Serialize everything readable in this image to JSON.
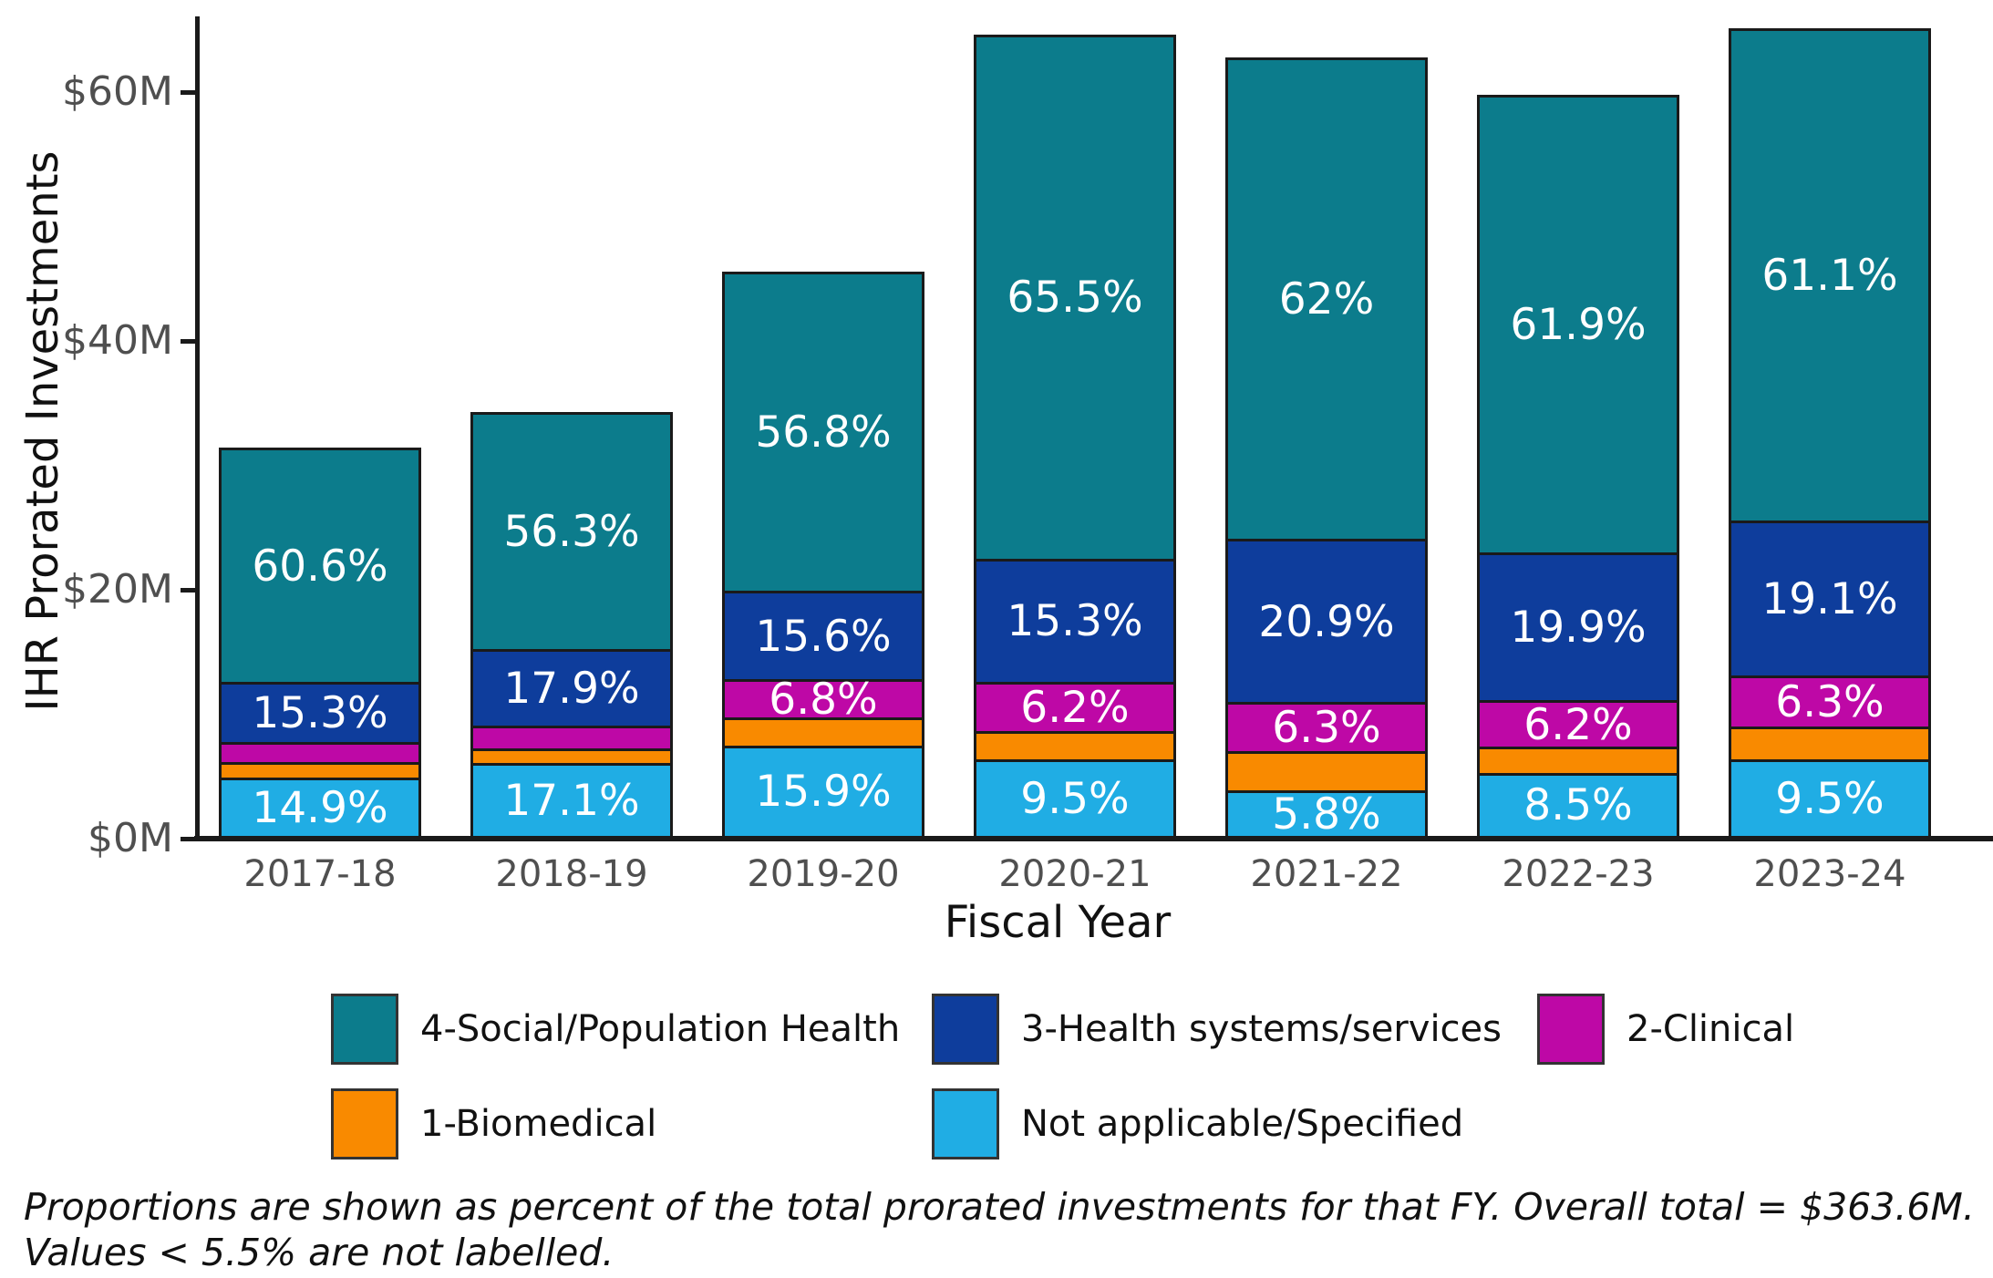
{
  "chart_data": {
    "type": "bar",
    "stacked": true,
    "xlabel": "Fiscal Year",
    "ylabel": "IHR Prorated Investments",
    "unit": "USD millions",
    "grid": false,
    "legend_position": "bottom",
    "y_ticks": [
      {
        "value": 0,
        "label": "$0M"
      },
      {
        "value": 20,
        "label": "$20M"
      },
      {
        "value": 40,
        "label": "$40M"
      },
      {
        "value": 60,
        "label": "$60M"
      }
    ],
    "ylim": [
      0,
      66
    ],
    "categories": [
      "2017-18",
      "2018-19",
      "2019-20",
      "2020-21",
      "2021-22",
      "2022-23",
      "2023-24"
    ],
    "totals_m_est": [
      31.4,
      34.3,
      45.6,
      64.6,
      62.8,
      59.8,
      65.1
    ],
    "overall_total_label": "$363.6M",
    "label_threshold_pct": 5.5,
    "series": [
      {
        "name": "Not applicable/Specified",
        "color": "#20ADE4",
        "values_pct": [
          14.9,
          17.1,
          15.9,
          9.5,
          5.8,
          8.5,
          9.5
        ],
        "labels": [
          "14.9%",
          "17.1%",
          "15.9%",
          "9.5%",
          "5.8%",
          "8.5%",
          "9.5%"
        ]
      },
      {
        "name": "1-Biomedical",
        "color": "#F98A00",
        "values_pct": [
          4.0,
          3.3,
          4.9,
          3.5,
          5.0,
          3.5,
          4.0
        ],
        "labels": [
          "",
          "",
          "",
          "",
          "",
          "",
          ""
        ]
      },
      {
        "name": "2-Clinical",
        "color": "#BE08A6",
        "values_pct": [
          5.2,
          5.4,
          6.8,
          6.2,
          6.3,
          6.2,
          6.3
        ],
        "labels": [
          "",
          "",
          "6.8%",
          "6.2%",
          "6.3%",
          "6.2%",
          "6.3%"
        ]
      },
      {
        "name": "3-Health systems/services",
        "color": "#0E3D9C",
        "values_pct": [
          15.3,
          17.9,
          15.6,
          15.3,
          20.9,
          19.9,
          19.1
        ],
        "labels": [
          "15.3%",
          "17.9%",
          "15.6%",
          "15.3%",
          "20.9%",
          "19.9%",
          "19.1%"
        ]
      },
      {
        "name": "4-Social/Population Health",
        "color": "#0C7C8C",
        "values_pct": [
          60.6,
          56.3,
          56.8,
          65.5,
          62.0,
          61.9,
          61.1
        ],
        "labels": [
          "60.6%",
          "56.3%",
          "56.8%",
          "65.5%",
          "62%",
          "61.9%",
          "61.1%"
        ]
      }
    ],
    "legend": [
      {
        "label": "4-Social/Population Health",
        "color": "#0C7C8C"
      },
      {
        "label": "3-Health systems/services",
        "color": "#0E3D9C"
      },
      {
        "label": "2-Clinical",
        "color": "#BE08A6"
      },
      {
        "label": "1-Biomedical",
        "color": "#F98A00"
      },
      {
        "label": "Not applicable/Specified",
        "color": "#20ADE4"
      }
    ],
    "footnote": [
      "Proportions are shown as percent of the total prorated investments for that FY. Overall total = $363.6M.",
      "Values < 5.5% are not labelled."
    ]
  }
}
